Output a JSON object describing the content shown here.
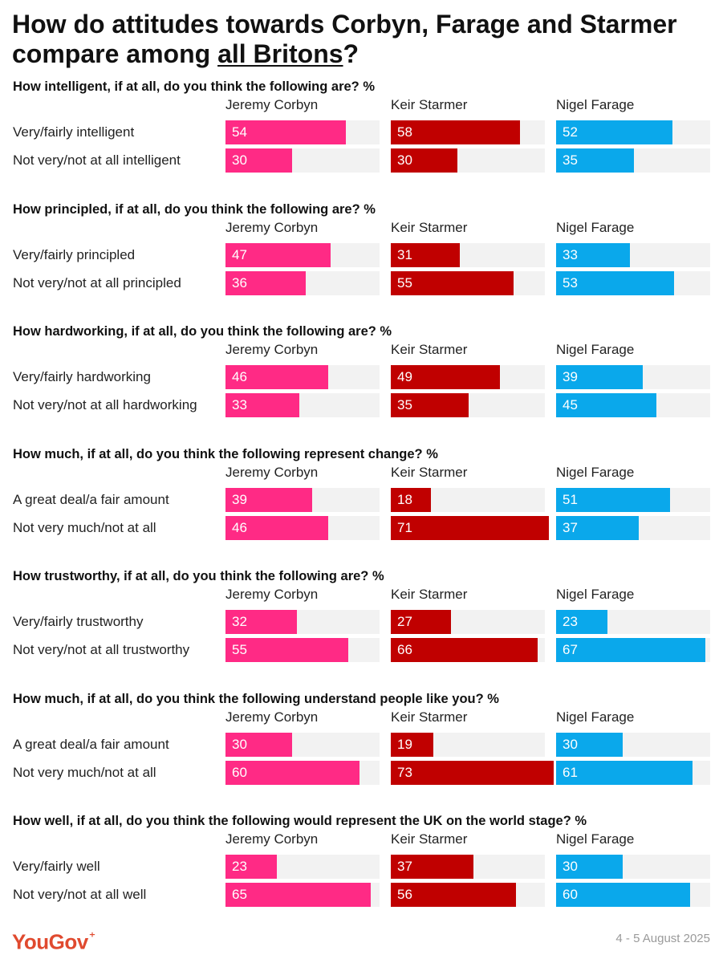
{
  "title_pre": "How do attitudes towards Corbyn, Farage and Starmer compare among ",
  "title_underlined": "all Britons",
  "title_post": "?",
  "logo": "YouGov",
  "date": "4 - 5 August 2025",
  "colors": {
    "Jeremy Corbyn": "#ff2a85",
    "Keir Starmer": "#c00000",
    "Nigel Farage": "#0aa8eb",
    "track": "#f2f2f2"
  },
  "chart_data": {
    "type": "bar",
    "unit": "%",
    "columns": [
      "Jeremy Corbyn",
      "Keir Starmer",
      "Nigel Farage"
    ],
    "xlim": [
      0,
      100
    ],
    "questions": [
      {
        "question": "How intelligent, if at all, do you think the following are? %",
        "rows": [
          {
            "label": "Very/fairly intelligent",
            "values": [
              54,
              58,
              52
            ]
          },
          {
            "label": "Not very/not at all intelligent",
            "values": [
              30,
              30,
              35
            ]
          }
        ]
      },
      {
        "question": "How principled, if at all, do you think the following are? %",
        "rows": [
          {
            "label": "Very/fairly principled",
            "values": [
              47,
              31,
              33
            ]
          },
          {
            "label": "Not very/not at all principled",
            "values": [
              36,
              55,
              53
            ]
          }
        ]
      },
      {
        "question": "How hardworking, if at all, do you think the following are? %",
        "rows": [
          {
            "label": "Very/fairly hardworking",
            "values": [
              46,
              49,
              39
            ]
          },
          {
            "label": "Not very/not at all hardworking",
            "values": [
              33,
              35,
              45
            ]
          }
        ]
      },
      {
        "question": "How much, if at all, do you think the following represent change? %",
        "rows": [
          {
            "label": "A great deal/a fair amount",
            "values": [
              39,
              18,
              51
            ]
          },
          {
            "label": "Not very much/not at all",
            "values": [
              46,
              71,
              37
            ]
          }
        ]
      },
      {
        "question": "How trustworthy, if at all, do you think the following are? %",
        "rows": [
          {
            "label": "Very/fairly trustworthy",
            "values": [
              32,
              27,
              23
            ]
          },
          {
            "label": "Not very/not at all trustworthy",
            "values": [
              55,
              66,
              67
            ]
          }
        ]
      },
      {
        "question": "How much, if at all, do you think the following understand people like you? %",
        "rows": [
          {
            "label": "A great deal/a fair amount",
            "values": [
              30,
              19,
              30
            ]
          },
          {
            "label": "Not very much/not at all",
            "values": [
              60,
              73,
              61
            ]
          }
        ]
      },
      {
        "question": "How well, if at all, do you think the following would represent the UK on the world stage? %",
        "rows": [
          {
            "label": "Very/fairly well",
            "values": [
              23,
              37,
              30
            ]
          },
          {
            "label": "Not very/not at all well",
            "values": [
              65,
              56,
              60
            ]
          }
        ]
      }
    ]
  }
}
